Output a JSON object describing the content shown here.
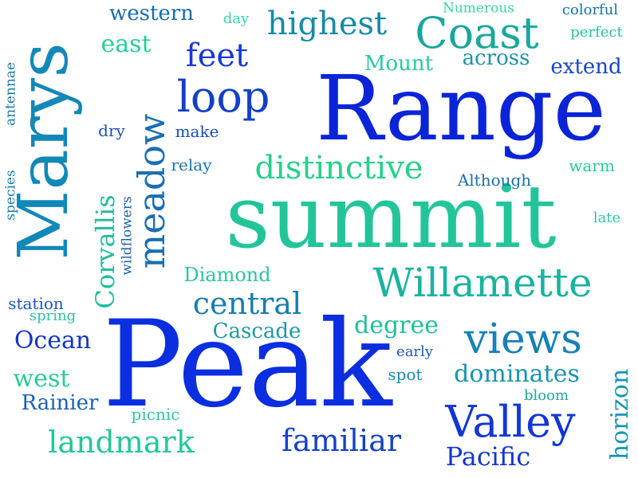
{
  "words": [
    {
      "text": "Peak",
      "color": "#0a2ee0",
      "weight": 1.0,
      "vertical": false
    },
    {
      "text": "Range",
      "color": "#0a24d8",
      "weight": 0.92,
      "vertical": false
    },
    {
      "text": "summit",
      "color": "#22c59a",
      "weight": 0.95,
      "vertical": false
    },
    {
      "text": "Marys",
      "color": "#1288b8",
      "weight": 0.85,
      "vertical": true
    },
    {
      "text": "Willamette",
      "color": "#1ab39f",
      "weight": 0.55,
      "vertical": false
    },
    {
      "text": "Valley",
      "color": "#1236d6",
      "weight": 0.55,
      "vertical": false
    },
    {
      "text": "Coast",
      "color": "#1aa79c",
      "weight": 0.5,
      "vertical": false
    },
    {
      "text": "views",
      "color": "#1780b8",
      "weight": 0.5,
      "vertical": false
    },
    {
      "text": "meadow",
      "color": "#1a6fb0",
      "weight": 0.48,
      "vertical": true
    },
    {
      "text": "loop",
      "color": "#1240c8",
      "weight": 0.5,
      "vertical": false
    },
    {
      "text": "distinctive",
      "color": "#26d08a",
      "weight": 0.42,
      "vertical": false
    },
    {
      "text": "highest",
      "color": "#168aa8",
      "weight": 0.4,
      "vertical": false
    },
    {
      "text": "feet",
      "color": "#1838d4",
      "weight": 0.42,
      "vertical": false
    },
    {
      "text": "central",
      "color": "#167eae",
      "weight": 0.38,
      "vertical": false
    },
    {
      "text": "landmark",
      "color": "#22c89a",
      "weight": 0.38,
      "vertical": false
    },
    {
      "text": "familiar",
      "color": "#1642c8",
      "weight": 0.38,
      "vertical": false
    },
    {
      "text": "Corvallis",
      "color": "#20bd9a",
      "weight": 0.34,
      "vertical": true
    },
    {
      "text": "dominates",
      "color": "#1a92ac",
      "weight": 0.3,
      "vertical": false
    },
    {
      "text": "Pacific",
      "color": "#1436d0",
      "weight": 0.3,
      "vertical": false
    },
    {
      "text": "horizon",
      "color": "#1696b0",
      "weight": 0.28,
      "vertical": true
    },
    {
      "text": "Mount",
      "color": "#2dc6a6",
      "weight": 0.25,
      "vertical": false
    },
    {
      "text": "across",
      "color": "#1a92aa",
      "weight": 0.25,
      "vertical": false
    },
    {
      "text": "extend",
      "color": "#1646c6",
      "weight": 0.24,
      "vertical": false
    },
    {
      "text": "western",
      "color": "#176caa",
      "weight": 0.24,
      "vertical": false
    },
    {
      "text": "east",
      "color": "#24d095",
      "weight": 0.24,
      "vertical": false
    },
    {
      "text": "Ocean",
      "color": "#1234cc",
      "weight": 0.28,
      "vertical": false
    },
    {
      "text": "degree",
      "color": "#22bf98",
      "weight": 0.28,
      "vertical": false
    },
    {
      "text": "Cascade",
      "color": "#1f98a2",
      "weight": 0.25,
      "vertical": false
    },
    {
      "text": "Diamond",
      "color": "#2bc69e",
      "weight": 0.22,
      "vertical": false
    },
    {
      "text": "west",
      "color": "#26cc8f",
      "weight": 0.25,
      "vertical": false
    },
    {
      "text": "Rainier",
      "color": "#1a60b6",
      "weight": 0.22,
      "vertical": false
    },
    {
      "text": "Although",
      "color": "#1a6fa8",
      "weight": 0.18,
      "vertical": false
    },
    {
      "text": "colorful",
      "color": "#1a74a2",
      "weight": 0.16,
      "vertical": false
    },
    {
      "text": "perfect",
      "color": "#28c2a0",
      "weight": 0.16,
      "vertical": false
    },
    {
      "text": "Numerous",
      "color": "#34d6a6",
      "weight": 0.14,
      "vertical": false
    },
    {
      "text": "day",
      "color": "#34d8a8",
      "weight": 0.14,
      "vertical": false
    },
    {
      "text": "warm",
      "color": "#27c99a",
      "weight": 0.16,
      "vertical": false
    },
    {
      "text": "relay",
      "color": "#1a76aa",
      "weight": 0.16,
      "vertical": false
    },
    {
      "text": "make",
      "color": "#1a4ec8",
      "weight": 0.16,
      "vertical": false
    },
    {
      "text": "dry",
      "color": "#1a4ebe",
      "weight": 0.16,
      "vertical": false
    },
    {
      "text": "late",
      "color": "#2dc8a2",
      "weight": 0.14,
      "vertical": false
    },
    {
      "text": "station",
      "color": "#1a56c2",
      "weight": 0.16,
      "vertical": false
    },
    {
      "text": "spring",
      "color": "#2ec0a4",
      "weight": 0.16,
      "vertical": false
    },
    {
      "text": "early",
      "color": "#1a56c0",
      "weight": 0.14,
      "vertical": false
    },
    {
      "text": "spot",
      "color": "#1a88b0",
      "weight": 0.16,
      "vertical": false
    },
    {
      "text": "bloom",
      "color": "#1aaa9c",
      "weight": 0.14,
      "vertical": false
    },
    {
      "text": "picnic",
      "color": "#2dc89c",
      "weight": 0.16,
      "vertical": false
    },
    {
      "text": "antennae",
      "color": "#1a76aa",
      "weight": 0.14,
      "vertical": true
    },
    {
      "text": "species",
      "color": "#1a7eaa",
      "weight": 0.14,
      "vertical": true
    },
    {
      "text": "wildflowers",
      "color": "#1a62b4",
      "weight": 0.14,
      "vertical": true
    }
  ]
}
